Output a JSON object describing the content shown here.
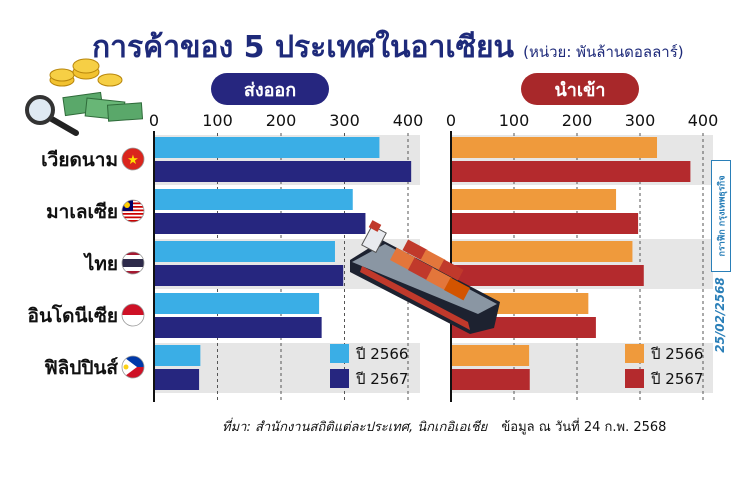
{
  "header": {
    "title": "การค้าของ 5 ประเทศในอาเซียน",
    "unit": "(หน่วย: พันล้านดอลลาร์)"
  },
  "colors": {
    "export_2566": "#3aaee6",
    "export_2567": "#26267f",
    "import_2566": "#ef9a3c",
    "import_2567": "#b42a2d",
    "export_pill": "#26267f",
    "import_pill": "#a8282a"
  },
  "chart_data": [
    {
      "type": "bar",
      "orientation": "horizontal",
      "title": "ส่งออก",
      "categories": [
        "เวียดนาม",
        "มาเลเซีย",
        "ไทย",
        "อินโดนีเซีย",
        "ฟิลิปปินส์"
      ],
      "flags": [
        "flag-vietnam-icon",
        "flag-malaysia-icon",
        "flag-thailand-icon",
        "flag-indonesia-icon",
        "flag-philippines-icon"
      ],
      "xlim": [
        0,
        400
      ],
      "ticks": [
        "0",
        "100",
        "200",
        "300",
        "400"
      ],
      "grid": true,
      "legend": "bottom-right",
      "series": [
        {
          "name": "ปี 2566",
          "values": [
            355,
            313,
            285,
            260,
            73
          ]
        },
        {
          "name": "ปี 2567",
          "values": [
            405,
            333,
            298,
            264,
            71
          ]
        }
      ]
    },
    {
      "type": "bar",
      "orientation": "horizontal",
      "title": "นำเข้า",
      "categories": [
        "เวียดนาม",
        "มาเลเซีย",
        "ไทย",
        "อินโดนีเซีย",
        "ฟิลิปปินส์"
      ],
      "xlim": [
        0,
        400
      ],
      "ticks": [
        "0",
        "100",
        "200",
        "300",
        "400"
      ],
      "grid": true,
      "legend": "bottom-right",
      "series": [
        {
          "name": "ปี 2566",
          "values": [
            327,
            262,
            288,
            218,
            124
          ]
        },
        {
          "name": "ปี 2567",
          "values": [
            380,
            297,
            306,
            230,
            125
          ]
        }
      ]
    }
  ],
  "footer": {
    "source": "ที่มา: สำนักงานสถิติแต่ละประเทศ, นิกเกอิเอเชีย",
    "as_of": "ข้อมูล ณ วันที่ 24 ก.พ. 2568"
  },
  "sidebar": {
    "credit": "กราฟิก กรุงเทพธุรกิจ",
    "date": "25/02/2568"
  },
  "decor": [
    "money-coins-icon",
    "magnifier-icon",
    "cargo-ship-icon"
  ]
}
